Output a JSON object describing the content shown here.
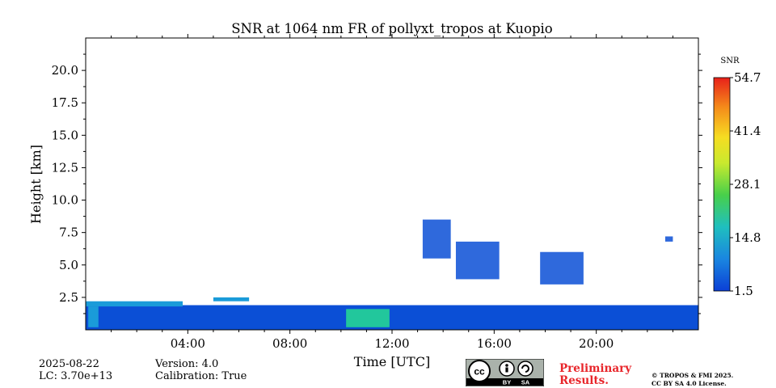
{
  "chart_data": {
    "type": "heatmap",
    "title": "SNR at 1064 nm FR of pollyxt_tropos at Kuopio",
    "xlabel": "Time [UTC]",
    "ylabel": "Height [km]",
    "xlim_hours": [
      0,
      24
    ],
    "ylim_km": [
      0,
      22.5
    ],
    "x_ticks": [
      {
        "hour": 4,
        "label": "04:00"
      },
      {
        "hour": 8,
        "label": "08:00"
      },
      {
        "hour": 12,
        "label": "12:00"
      },
      {
        "hour": 16,
        "label": "16:00"
      },
      {
        "hour": 20,
        "label": "20:00"
      }
    ],
    "y_ticks": [
      {
        "value": 2.5,
        "label": "2.5"
      },
      {
        "value": 5.0,
        "label": "5.0"
      },
      {
        "value": 7.5,
        "label": "7.5"
      },
      {
        "value": 10.0,
        "label": "10.0"
      },
      {
        "value": 12.5,
        "label": "12.5"
      },
      {
        "value": 15.0,
        "label": "15.0"
      },
      {
        "value": 17.5,
        "label": "17.5"
      },
      {
        "value": 20.0,
        "label": "20.0"
      }
    ],
    "colorbar": {
      "label": "SNR",
      "min": 1.5,
      "max": 54.7,
      "ticks": [
        {
          "value": 1.5,
          "label": "1.5"
        },
        {
          "value": 14.8,
          "label": "14.8"
        },
        {
          "value": 28.1,
          "label": "28.1"
        },
        {
          "value": 41.4,
          "label": "41.4"
        },
        {
          "value": 54.7,
          "label": "54.7"
        }
      ],
      "colors": [
        "#0b4fd6",
        "#1a9bd9",
        "#22c79c",
        "#52d23a",
        "#f2ee2b",
        "#f59c1a",
        "#e0261a"
      ]
    },
    "regions": [
      {
        "desc": "low",
        "t0": 0.0,
        "t1": 24.0,
        "h0": 0.0,
        "h1": 1.9,
        "snr": 4
      },
      {
        "desc": "layer",
        "t0": 0.0,
        "t1": 3.8,
        "h0": 1.8,
        "h1": 2.2,
        "snr": 16
      },
      {
        "desc": "layer",
        "t0": 5.0,
        "t1": 6.4,
        "h0": 2.2,
        "h1": 2.5,
        "snr": 12
      },
      {
        "desc": "layer",
        "t0": 10.2,
        "t1": 11.9,
        "h0": 0.2,
        "h1": 1.6,
        "snr": 22
      },
      {
        "desc": "layer",
        "t0": 0.1,
        "t1": 0.5,
        "h0": 0.2,
        "h1": 1.8,
        "snr": 12
      },
      {
        "desc": "cloud",
        "t0": 14.5,
        "t1": 16.2,
        "h0": 3.9,
        "h1": 6.8,
        "snr": 3
      },
      {
        "desc": "cloud",
        "t0": 17.8,
        "t1": 19.5,
        "h0": 3.5,
        "h1": 6.0,
        "snr": 3
      },
      {
        "desc": "cloud",
        "t0": 13.2,
        "t1": 14.3,
        "h0": 5.5,
        "h1": 8.5,
        "snr": 3
      },
      {
        "desc": "cloud",
        "t0": 22.7,
        "t1": 23.0,
        "h0": 6.8,
        "h1": 7.2,
        "snr": 3
      }
    ]
  },
  "footer": {
    "date": "2025-08-22",
    "lc": "LC: 3.70e+13",
    "version": "Version: 4.0",
    "calibration": "Calibration: True",
    "preliminary_line1": "Preliminary",
    "preliminary_line2": "Results.",
    "license_line1": "© TROPOS & FMI 2025.",
    "license_line2": "CC BY SA 4.0 License.",
    "badge_by": "BY",
    "badge_sa": "SA"
  }
}
